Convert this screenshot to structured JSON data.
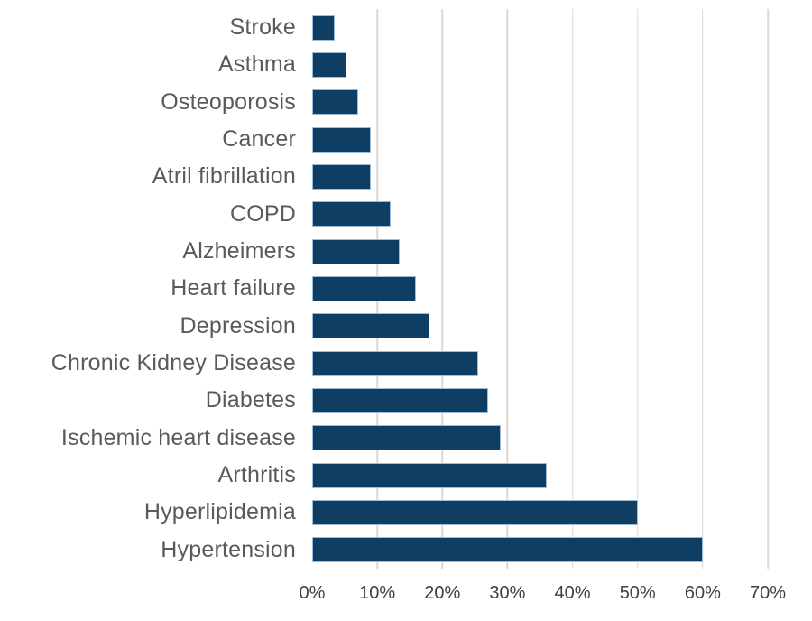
{
  "chart_data": {
    "type": "bar",
    "orientation": "horizontal",
    "title": "",
    "xlabel": "",
    "ylabel": "",
    "categories": [
      "Stroke",
      "Asthma",
      "Osteoporosis",
      "Cancer",
      "Atril fibrillation",
      "COPD",
      "Alzheimers",
      "Heart failure",
      "Depression",
      "Chronic Kidney Disease",
      "Diabetes",
      "Ischemic heart disease",
      "Arthritis",
      "Hyperlipidemia",
      "Hypertension"
    ],
    "values": [
      3.4,
      5.3,
      7,
      9,
      9,
      12,
      13.5,
      16,
      18,
      25.5,
      27,
      29,
      36,
      50,
      60
    ],
    "value_unit": "%",
    "x_ticks": [
      "0%",
      "10%",
      "20%",
      "30%",
      "40%",
      "50%",
      "60%",
      "70%"
    ],
    "xlim": [
      0,
      70
    ],
    "grid": "vertical",
    "legend_position": "none",
    "colors": {
      "bar_fill": "#0f3e64",
      "bar_border": "#9fbdd6",
      "gridline": "#d9d9d9",
      "category_text": "#5a5a5a",
      "tick_text": "#404040",
      "background": "#ffffff"
    }
  }
}
